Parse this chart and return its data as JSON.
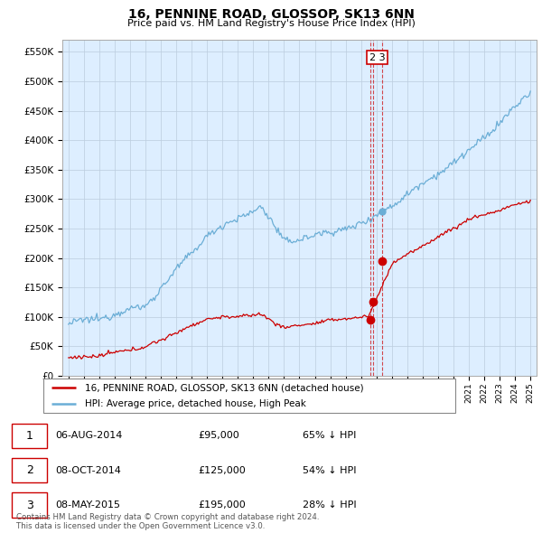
{
  "title": "16, PENNINE ROAD, GLOSSOP, SK13 6NN",
  "subtitle": "Price paid vs. HM Land Registry's House Price Index (HPI)",
  "ytick_values": [
    0,
    50000,
    100000,
    150000,
    200000,
    250000,
    300000,
    350000,
    400000,
    450000,
    500000,
    550000
  ],
  "hpi_color": "#6baed6",
  "price_color": "#cc0000",
  "dashed_color": "#cc0000",
  "bg_color": "#ddeeff",
  "transactions": [
    {
      "label": "1",
      "date": "06-AUG-2014",
      "price": 95000,
      "pct": "65%",
      "direction": "↓"
    },
    {
      "label": "2",
      "date": "08-OCT-2014",
      "price": 125000,
      "pct": "54%",
      "direction": "↓"
    },
    {
      "label": "3",
      "date": "08-MAY-2015",
      "price": 195000,
      "pct": "28%",
      "direction": "↓"
    }
  ],
  "transaction_dates_numeric": [
    2014.58,
    2014.77,
    2015.35
  ],
  "transaction_prices": [
    95000,
    125000,
    195000
  ],
  "footnote": "Contains HM Land Registry data © Crown copyright and database right 2024.\nThis data is licensed under the Open Government Licence v3.0.",
  "legend_entries": [
    "16, PENNINE ROAD, GLOSSOP, SK13 6NN (detached house)",
    "HPI: Average price, detached house, High Peak"
  ]
}
